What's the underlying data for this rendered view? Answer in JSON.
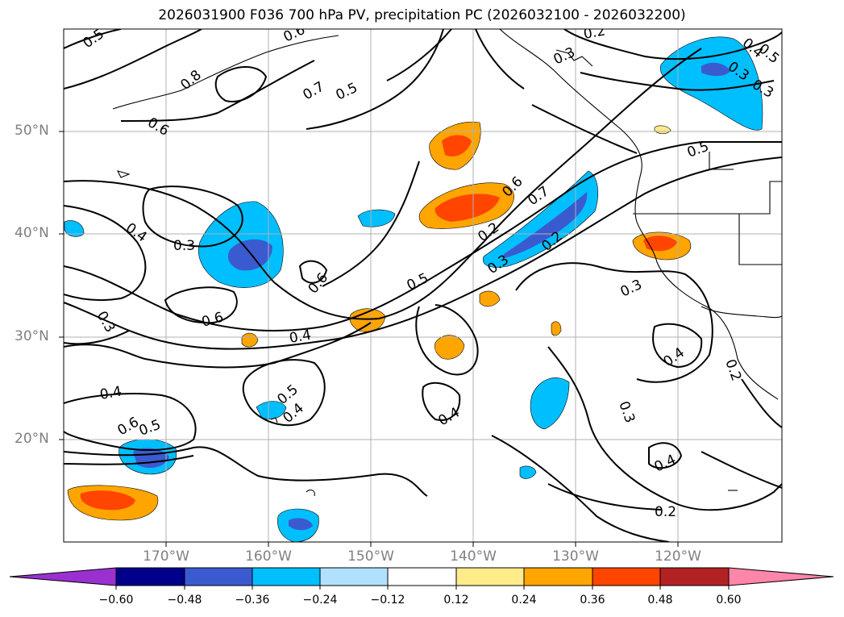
{
  "title": "2026031900 F036 700 hPa PV, precipitation PC (2026032100 - 2026032200)",
  "lat_labels": [
    "50°N",
    "40°N",
    "30°N",
    "20°N"
  ],
  "lon_labels": [
    "170°W",
    "160°W",
    "150°W",
    "140°W",
    "130°W",
    "120°W"
  ],
  "contour_labels": [
    "0.5",
    "0.6",
    "0.8",
    "0.7",
    "0.5",
    "0.6",
    "0.2",
    "0.3",
    "0.4",
    "0.3",
    "0.5",
    "0.4",
    "0.3",
    "0.6",
    "0.6",
    "0.6",
    "0.7",
    "0.5",
    "0.3",
    "0.2",
    "0.3",
    "0.3",
    "0.4",
    "0.4",
    "0.6",
    "0.5",
    "0.5",
    "0.4",
    "0.4",
    "0.3",
    "0.4",
    "0.4",
    "0.2",
    "0.2",
    "0.3",
    "0.5",
    "0.2"
  ],
  "colorbar": {
    "ticks": [
      "−0.60",
      "−0.48",
      "−0.36",
      "−0.24",
      "−0.12",
      "0.12",
      "0.24",
      "0.36",
      "0.48",
      "0.60"
    ],
    "colors": [
      "#9b30d0",
      "#00008b",
      "#3a5bd0",
      "#00bfff",
      "#b0e2ff",
      "#ffffff",
      "#ffeb8a",
      "#ffa500",
      "#ff4500",
      "#b22222",
      "#ff85aa"
    ]
  }
}
